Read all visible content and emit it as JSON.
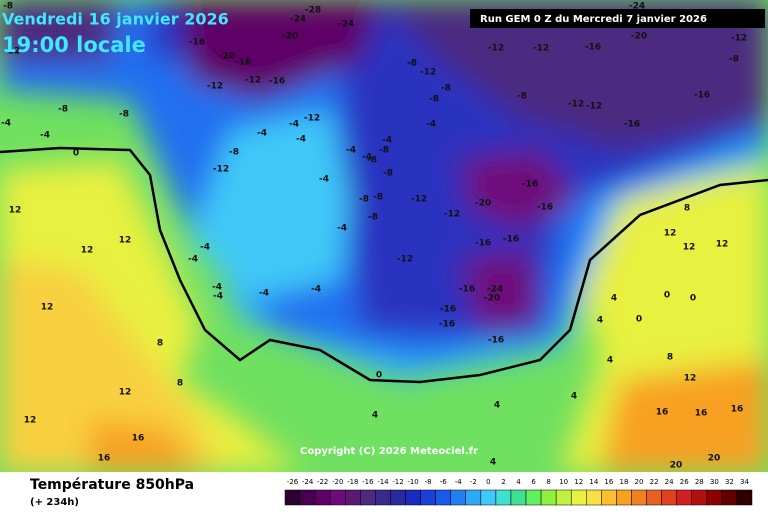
{
  "header": {
    "date": "Vendredi 16 janvier 2026",
    "time": "19:00 locale",
    "run": "Run GEM 0 Z du Mercredi 7 janvier 2026"
  },
  "copyright": "Copyright (C) 2026 Meteociel.fr",
  "map": {
    "labels": [
      "-8",
      "-28",
      "-24",
      "-24",
      "-20",
      "-24",
      "-16",
      "-20",
      "-16",
      "-12",
      "-12",
      "-12",
      "-16",
      "-8",
      "-12",
      "-12",
      "-12",
      "-16",
      "-20",
      "-12",
      "-8",
      "-8",
      "-8",
      "-4",
      "-4",
      "0",
      "-12",
      "-4",
      "-8",
      "-8",
      "-8",
      "-12",
      "-12",
      "-16",
      "-16",
      "-4",
      "-8",
      "-12",
      "-4",
      "-4",
      "-4",
      "-8",
      "-8",
      "-4",
      "-4",
      "-8",
      "-4",
      "-8",
      "-8",
      "-8",
      "-12",
      "-12",
      "-20",
      "-16",
      "-16",
      "-4",
      "-16",
      "-16",
      "-12",
      "-24",
      "-20",
      "-16",
      "-16",
      "-16",
      "-16",
      "-4",
      "-4",
      "-4",
      "-4",
      "-4",
      "-4",
      "12",
      "12",
      "12",
      "12",
      "8",
      "8",
      "12",
      "16",
      "16",
      "12",
      "0",
      "4",
      "4",
      "4",
      "4",
      "4",
      "8",
      "12",
      "12",
      "12",
      "8",
      "12",
      "16",
      "16",
      "16",
      "20",
      "20",
      "4",
      "0",
      "0",
      "0",
      "4"
    ]
  },
  "legend": {
    "title": "Température 850hPa",
    "lead": "(+ 234h)",
    "scale": [
      -26,
      -24,
      -22,
      -20,
      -18,
      -16,
      -14,
      -12,
      -10,
      -8,
      -6,
      -4,
      -2,
      0,
      2,
      4,
      6,
      8,
      10,
      12,
      14,
      16,
      18,
      20,
      22,
      24,
      26,
      28,
      30,
      32,
      34
    ],
    "colors": [
      "#2e0030",
      "#4a0050",
      "#5e0066",
      "#6f0a7a",
      "#5a1a72",
      "#4b2a80",
      "#3a2a8a",
      "#2a2aa0",
      "#1a2ac0",
      "#1a40d8",
      "#1a5ae8",
      "#2080f0",
      "#30a8f8",
      "#40c8f8",
      "#40e0d0",
      "#40e090",
      "#60f060",
      "#90f040",
      "#c0f040",
      "#e8f040",
      "#f8e040",
      "#f8c030",
      "#f8a020",
      "#f08020",
      "#e86020",
      "#e04020",
      "#d02020",
      "#b01010",
      "#900000",
      "#600000",
      "#300000"
    ]
  }
}
